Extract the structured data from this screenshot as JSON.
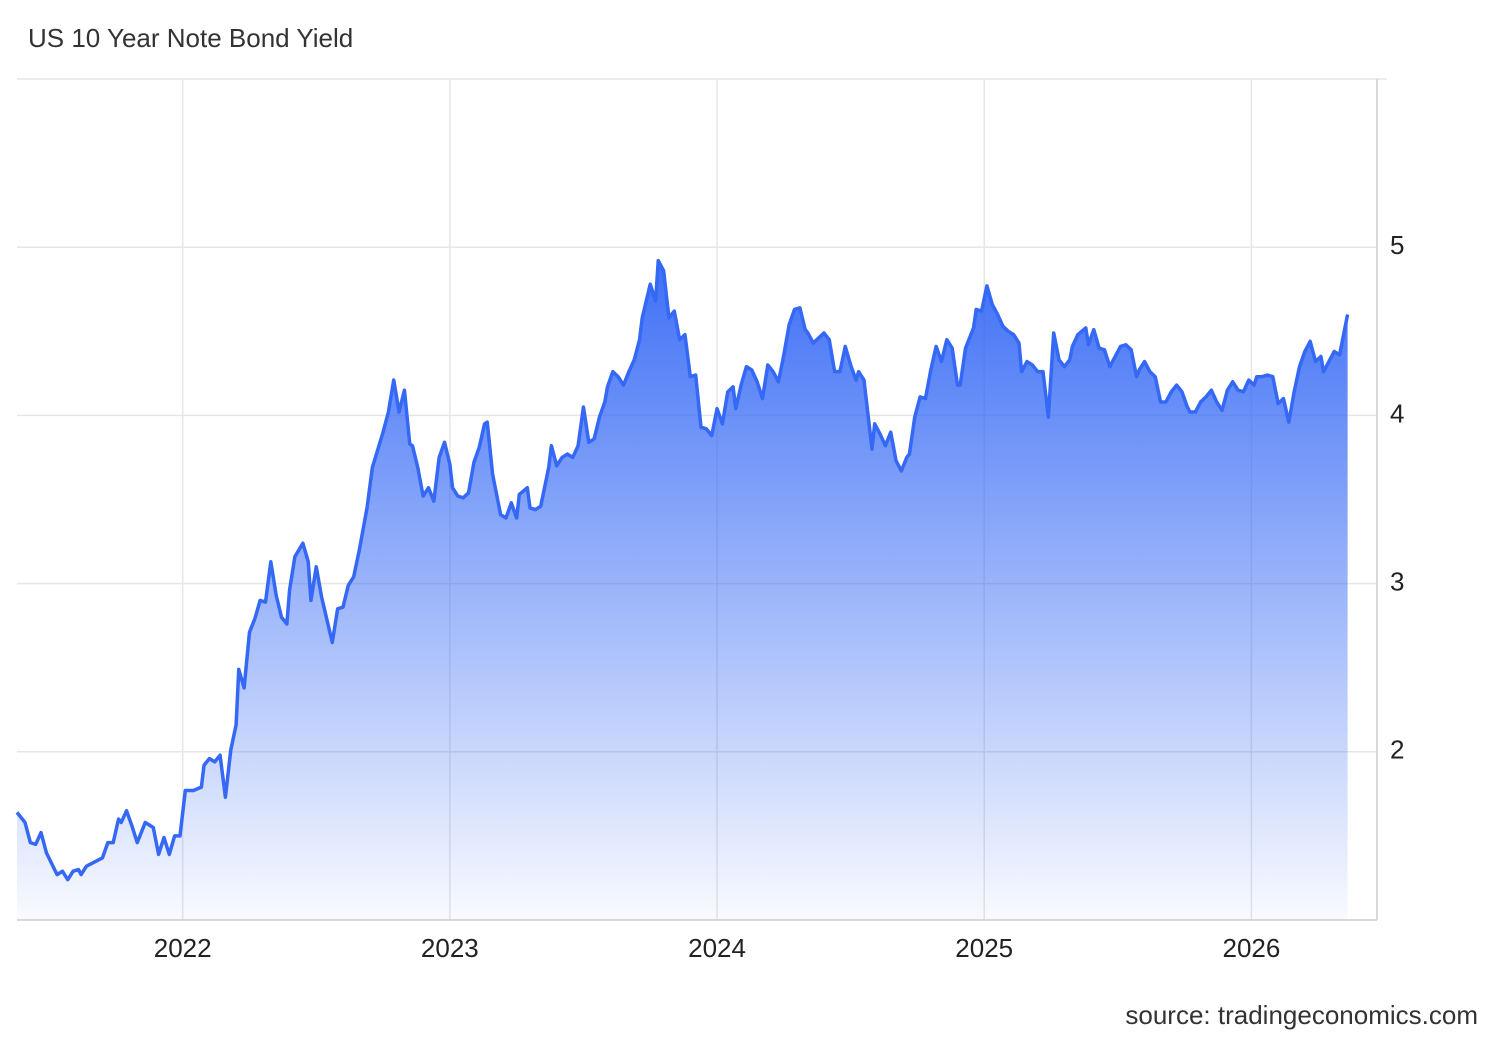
{
  "chart_data": {
    "type": "area",
    "title": "US 10 Year Note Bond Yield",
    "source": "source: tradingeconomics.com",
    "color": "#3468f5",
    "grid": true,
    "xlim": [
      2021.38,
      2026.47
    ],
    "xticks": [
      2022,
      2023,
      2024,
      2025,
      2026
    ],
    "ylim": [
      1,
      6
    ],
    "yticks": [
      2,
      3,
      4,
      5
    ],
    "x": [
      2021.38,
      2021.41,
      2021.43,
      2021.45,
      2021.47,
      2021.49,
      2021.53,
      2021.55,
      2021.57,
      2021.59,
      2021.61,
      2021.62,
      2021.64,
      2021.7,
      2021.72,
      2021.74,
      2021.76,
      2021.77,
      2021.79,
      2021.81,
      2021.83,
      2021.86,
      2021.89,
      2021.91,
      2021.93,
      2021.95,
      2021.97,
      2021.99,
      2022.01,
      2022.04,
      2022.07,
      2022.08,
      2022.1,
      2022.12,
      2022.14,
      2022.16,
      2022.18,
      2022.2,
      2022.21,
      2022.23,
      2022.25,
      2022.27,
      2022.29,
      2022.31,
      2022.33,
      2022.35,
      2022.37,
      2022.39,
      2022.4,
      2022.42,
      2022.45,
      2022.47,
      2022.48,
      2022.5,
      2022.52,
      2022.56,
      2022.58,
      2022.6,
      2022.62,
      2022.64,
      2022.66,
      2022.69,
      2022.71,
      2022.75,
      2022.77,
      2022.79,
      2022.81,
      2022.83,
      2022.85,
      2022.86,
      2022.88,
      2022.9,
      2022.92,
      2022.94,
      2022.96,
      2022.98,
      2023.0,
      2023.01,
      2023.03,
      2023.05,
      2023.07,
      2023.09,
      2023.11,
      2023.13,
      2023.14,
      2023.16,
      2023.19,
      2023.21,
      2023.23,
      2023.25,
      2023.26,
      2023.29,
      2023.3,
      2023.32,
      2023.34,
      2023.37,
      2023.38,
      2023.4,
      2023.42,
      2023.44,
      2023.46,
      2023.48,
      2023.5,
      2023.52,
      2023.54,
      2023.56,
      2023.58,
      2023.59,
      2023.61,
      2023.63,
      2023.65,
      2023.67,
      2023.69,
      2023.71,
      2023.72,
      2023.75,
      2023.77,
      2023.78,
      2023.8,
      2023.82,
      2023.84,
      2023.86,
      2023.88,
      2023.9,
      2023.92,
      2023.94,
      2023.96,
      2023.98,
      2024.0,
      2024.02,
      2024.04,
      2024.06,
      2024.07,
      2024.09,
      2024.11,
      2024.13,
      2024.15,
      2024.17,
      2024.19,
      2024.21,
      2024.23,
      2024.25,
      2024.27,
      2024.29,
      2024.31,
      2024.33,
      2024.34,
      2024.36,
      2024.38,
      2024.4,
      2024.42,
      2024.44,
      2024.46,
      2024.48,
      2024.5,
      2024.52,
      2024.53,
      2024.55,
      2024.58,
      2024.59,
      2024.61,
      2024.63,
      2024.65,
      2024.67,
      2024.69,
      2024.71,
      2024.72,
      2024.74,
      2024.76,
      2024.78,
      2024.8,
      2024.82,
      2024.84,
      2024.86,
      2024.88,
      2024.9,
      2024.91,
      2024.93,
      2024.96,
      2024.97,
      2024.99,
      2025.01,
      2025.03,
      2025.05,
      2025.07,
      2025.09,
      2025.11,
      2025.13,
      2025.14,
      2025.16,
      2025.18,
      2025.2,
      2025.22,
      2025.24,
      2025.26,
      2025.28,
      2025.3,
      2025.32,
      2025.33,
      2025.35,
      2025.38,
      2025.39,
      2025.41,
      2025.43,
      2025.45,
      2025.47,
      2025.49,
      2025.51,
      2025.53,
      2025.55,
      2025.57,
      2025.58,
      2025.6,
      2025.62,
      2025.64,
      2025.66,
      2025.68,
      2025.7,
      2025.72,
      2025.74,
      2025.76,
      2025.77,
      2025.79,
      2025.81,
      2025.83,
      2025.85,
      2025.87,
      2025.89,
      2025.91,
      2025.93,
      2025.95,
      2025.97,
      2025.99,
      2026.01,
      2026.02,
      2026.04,
      2026.06,
      2026.08,
      2026.1,
      2026.12,
      2026.14,
      2026.16,
      2026.18,
      2026.2,
      2026.22,
      2026.24,
      2026.26,
      2026.27,
      2026.29,
      2026.31,
      2026.33,
      2026.36
    ],
    "values": [
      1.64,
      1.58,
      1.46,
      1.45,
      1.52,
      1.4,
      1.27,
      1.29,
      1.24,
      1.29,
      1.3,
      1.27,
      1.32,
      1.37,
      1.46,
      1.46,
      1.6,
      1.58,
      1.65,
      1.56,
      1.46,
      1.58,
      1.55,
      1.39,
      1.49,
      1.39,
      1.5,
      1.5,
      1.77,
      1.77,
      1.79,
      1.92,
      1.96,
      1.94,
      1.98,
      1.73,
      2.01,
      2.16,
      2.49,
      2.38,
      2.71,
      2.79,
      2.9,
      2.89,
      3.13,
      2.93,
      2.8,
      2.76,
      2.96,
      3.16,
      3.24,
      3.13,
      2.9,
      3.1,
      2.92,
      2.65,
      2.85,
      2.86,
      2.99,
      3.04,
      3.19,
      3.45,
      3.69,
      3.9,
      4.02,
      4.21,
      4.02,
      4.15,
      3.83,
      3.82,
      3.69,
      3.52,
      3.57,
      3.49,
      3.75,
      3.84,
      3.71,
      3.57,
      3.52,
      3.51,
      3.54,
      3.72,
      3.81,
      3.95,
      3.96,
      3.65,
      3.41,
      3.39,
      3.48,
      3.39,
      3.53,
      3.57,
      3.45,
      3.44,
      3.46,
      3.69,
      3.82,
      3.7,
      3.75,
      3.77,
      3.75,
      3.82,
      4.05,
      3.84,
      3.86,
      3.99,
      4.08,
      4.17,
      4.26,
      4.23,
      4.18,
      4.26,
      4.33,
      4.45,
      4.58,
      4.78,
      4.68,
      4.92,
      4.86,
      4.58,
      4.62,
      4.45,
      4.48,
      4.23,
      4.24,
      3.93,
      3.92,
      3.88,
      4.04,
      3.95,
      4.14,
      4.17,
      4.04,
      4.18,
      4.29,
      4.27,
      4.2,
      4.1,
      4.3,
      4.26,
      4.2,
      4.36,
      4.54,
      4.63,
      4.64,
      4.51,
      4.49,
      4.43,
      4.46,
      4.49,
      4.45,
      4.26,
      4.26,
      4.41,
      4.3,
      4.21,
      4.26,
      4.21,
      3.8,
      3.95,
      3.89,
      3.82,
      3.9,
      3.73,
      3.67,
      3.75,
      3.77,
      3.99,
      4.11,
      4.1,
      4.27,
      4.41,
      4.32,
      4.45,
      4.4,
      4.18,
      4.18,
      4.4,
      4.52,
      4.63,
      4.62,
      4.77,
      4.66,
      4.6,
      4.53,
      4.5,
      4.48,
      4.43,
      4.26,
      4.32,
      4.3,
      4.26,
      4.26,
      3.99,
      4.49,
      4.33,
      4.29,
      4.33,
      4.41,
      4.48,
      4.52,
      4.42,
      4.51,
      4.4,
      4.39,
      4.29,
      4.35,
      4.41,
      4.42,
      4.39,
      4.23,
      4.27,
      4.32,
      4.26,
      4.23,
      4.08,
      4.08,
      4.14,
      4.18,
      4.14,
      4.05,
      4.02,
      4.02,
      4.08,
      4.11,
      4.15,
      4.08,
      4.03,
      4.15,
      4.2,
      4.15,
      4.14,
      4.21,
      4.18,
      4.23,
      4.23,
      4.24,
      4.23,
      4.07,
      4.1,
      3.96,
      4.14,
      4.29,
      4.38,
      4.44,
      4.32,
      4.35,
      4.26,
      4.32,
      4.38,
      4.36,
      4.6
    ]
  }
}
